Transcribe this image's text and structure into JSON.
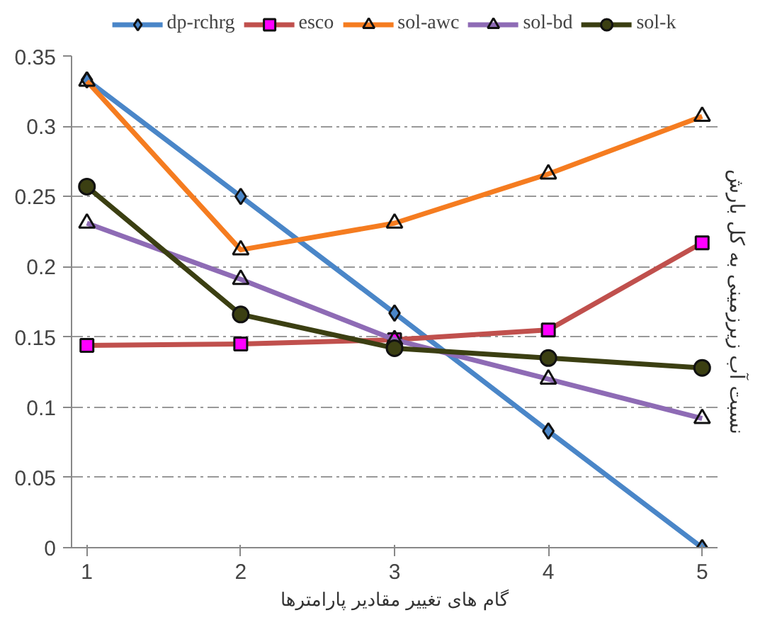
{
  "chart_data": {
    "type": "line",
    "xlabel": "گام های تغییر مقادیر پارامترها",
    "ylabel": "نسبت آب زیرزمینی به کل بارش",
    "x": [
      1,
      2,
      3,
      4,
      5
    ],
    "xlim": [
      0.9,
      5.1
    ],
    "xticks": [
      1,
      2,
      3,
      4,
      5
    ],
    "ylim": [
      0,
      0.35
    ],
    "yticks": [
      0,
      0.05,
      0.1,
      0.15,
      0.2,
      0.25,
      0.3,
      0.35
    ],
    "grid": "y",
    "legend": "top",
    "series": [
      {
        "name": "dp-rchrg",
        "color": "#4a86c8",
        "marker": "diamond",
        "values": [
          0.333,
          0.25,
          0.167,
          0.083,
          0.0
        ]
      },
      {
        "name": "esco",
        "color": "#c0504d",
        "marker": "square",
        "values": [
          0.144,
          0.145,
          0.148,
          0.155,
          0.217
        ]
      },
      {
        "name": "sol-awc",
        "color": "#f57c20",
        "marker": "triangle",
        "values": [
          0.332,
          0.212,
          0.231,
          0.266,
          0.307
        ]
      },
      {
        "name": "sol-bd",
        "color": "#8e6bb5",
        "marker": "triangle",
        "values": [
          0.231,
          0.191,
          0.148,
          0.12,
          0.092
        ]
      },
      {
        "name": "sol-k",
        "color": "#3b3f12",
        "marker": "circle",
        "values": [
          0.257,
          0.166,
          0.142,
          0.135,
          0.128
        ]
      }
    ]
  }
}
